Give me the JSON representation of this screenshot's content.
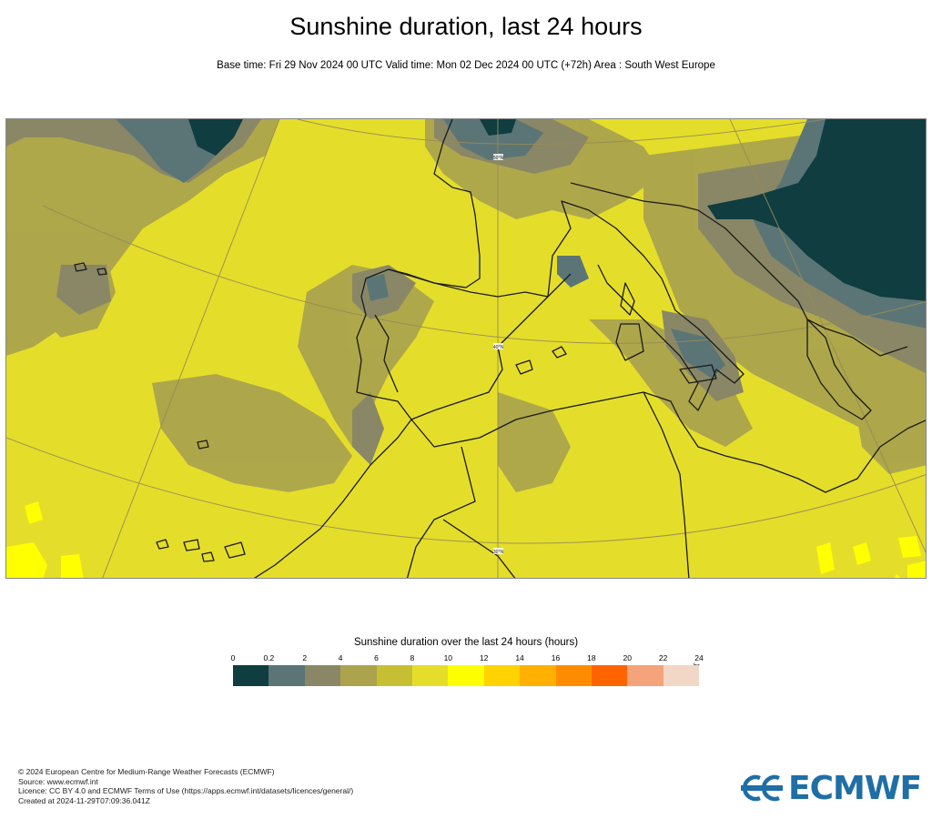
{
  "header": {
    "title": "Sunshine duration, last 24 hours",
    "subtitle": "Base time: Fri 29 Nov 2024 00 UTC Valid time: Mon 02 Dec 2024 00 UTC (+72h) Area : South West Europe"
  },
  "map": {
    "region": "South West Europe",
    "gridline_labels": [
      "50°N",
      "40°N",
      "30°N"
    ],
    "colors": {
      "land_sea_base": "#e4de2b",
      "coastline": "#1a1a1a",
      "graticule": "#9a8a55"
    }
  },
  "legend": {
    "title": "Sunshine duration over the last 24 hours (hours)",
    "unit": "hr",
    "tick_labels": [
      "0",
      "0.2",
      "2",
      "4",
      "6",
      "8",
      "10",
      "12",
      "14",
      "16",
      "18",
      "20",
      "22",
      "24"
    ],
    "bins": [
      {
        "from": 0,
        "to": 0.2,
        "color": "#0f3d40"
      },
      {
        "from": 0.2,
        "to": 2,
        "color": "#5b7577"
      },
      {
        "from": 2,
        "to": 4,
        "color": "#8a8766"
      },
      {
        "from": 4,
        "to": 6,
        "color": "#aba44d"
      },
      {
        "from": 6,
        "to": 8,
        "color": "#c6bf34"
      },
      {
        "from": 8,
        "to": 10,
        "color": "#e4de2b"
      },
      {
        "from": 10,
        "to": 12,
        "color": "#ffff00"
      },
      {
        "from": 12,
        "to": 14,
        "color": "#ffd200"
      },
      {
        "from": 14,
        "to": 16,
        "color": "#ffb000"
      },
      {
        "from": 16,
        "to": 18,
        "color": "#ff8c00"
      },
      {
        "from": 18,
        "to": 20,
        "color": "#ff6400"
      },
      {
        "from": 20,
        "to": 22,
        "color": "#f5a37a"
      },
      {
        "from": 22,
        "to": 24,
        "color": "#f2d7c6"
      }
    ]
  },
  "footer": {
    "copyright": "© 2024 European Centre for Medium-Range Weather Forecasts (ECMWF)",
    "source": "Source: www.ecmwf.int",
    "licence": "Licence: CC BY 4.0 and ECMWF Terms of Use (https://apps.ecmwf.int/datasets/licences/general/)",
    "created": "Created at 2024-11-29T07:09:36.041Z"
  },
  "logo": {
    "text": "ECMWF",
    "color": "#1f6ea6"
  }
}
